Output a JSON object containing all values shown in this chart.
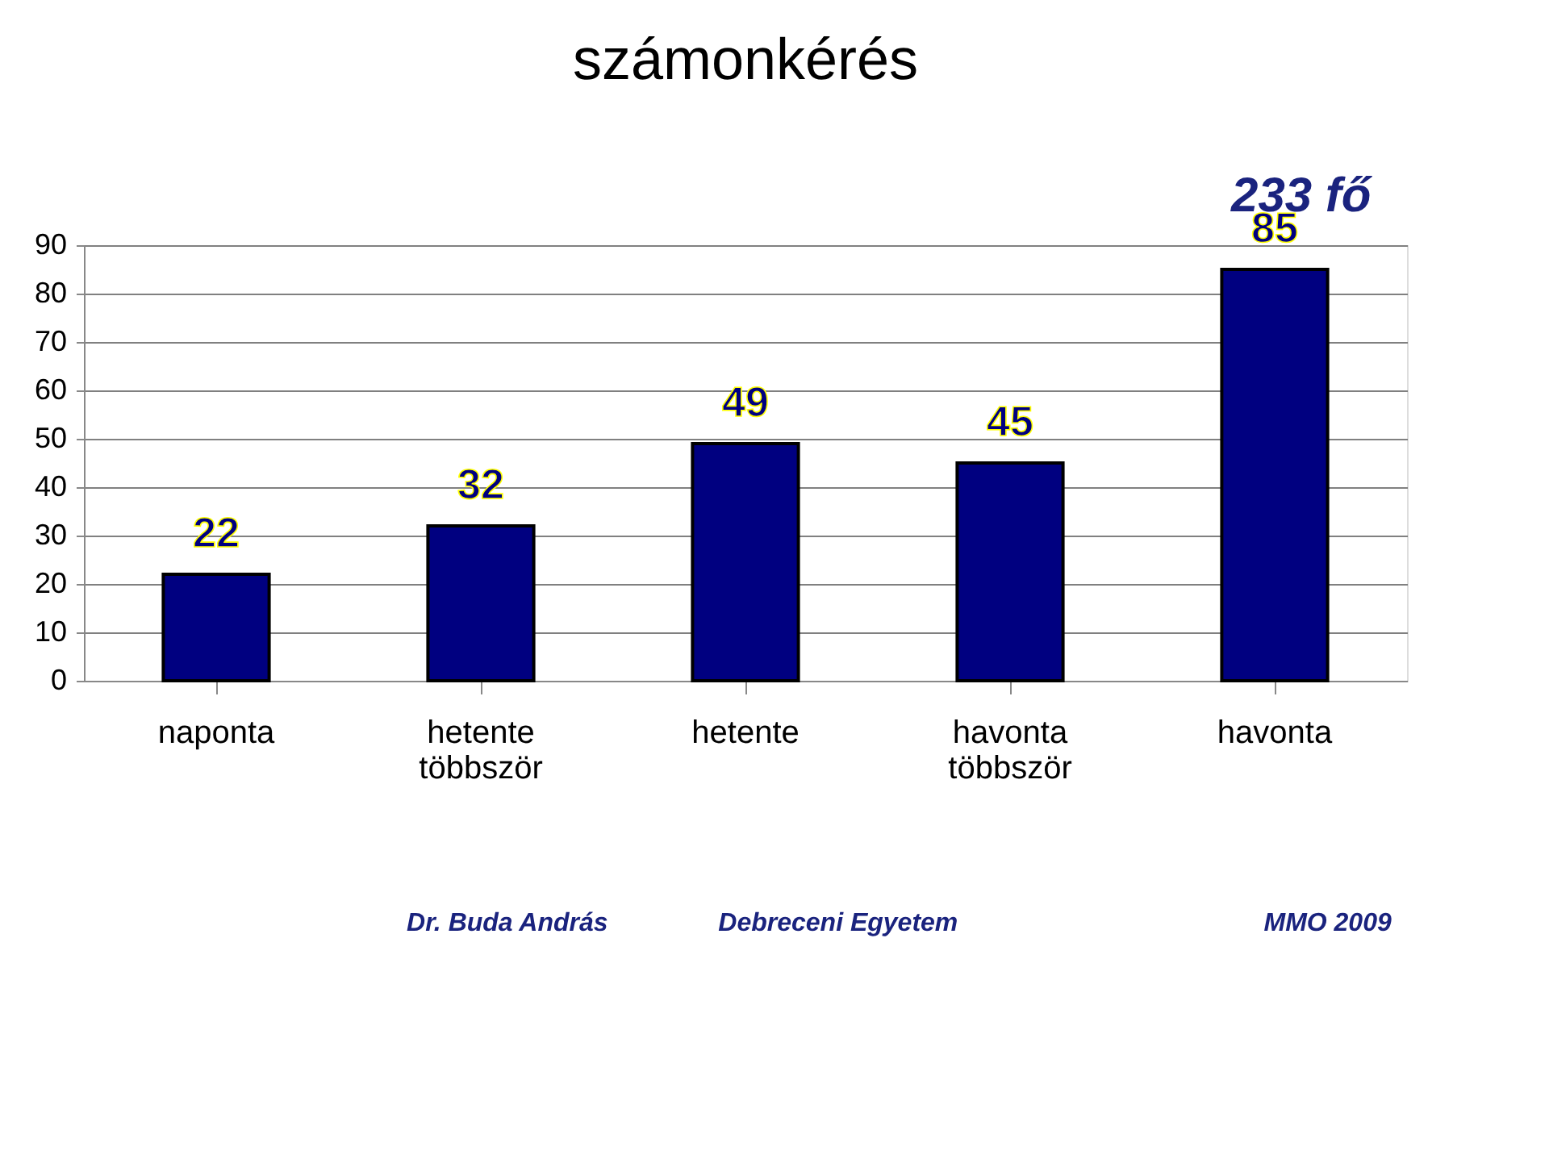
{
  "chart_data": {
    "type": "bar",
    "title": "számonkérés",
    "categories": [
      "naponta",
      "hetente többször",
      "hetente",
      "havonta többször",
      "havonta"
    ],
    "values": [
      22,
      32,
      49,
      45,
      85
    ],
    "color": "#000080",
    "data_labels": true,
    "ylim": [
      0,
      90
    ],
    "yticks": [
      0,
      10,
      20,
      30,
      40,
      50,
      60,
      70,
      80,
      90
    ],
    "grid": "y",
    "annotations": [
      "233 fő",
      "Dr. Buda András",
      "Debreceni Egyetem",
      "MMO 2009"
    ]
  }
}
